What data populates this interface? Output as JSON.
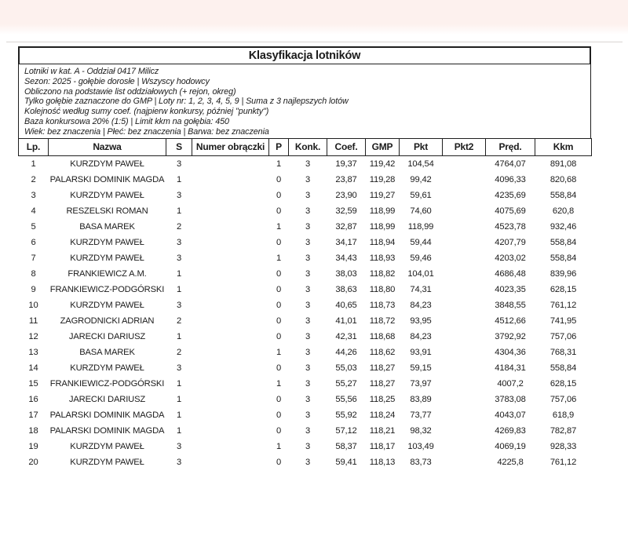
{
  "report": {
    "title": "Klasyfikacja lotników",
    "info_lines": [
      "Lotniki w kat. A - Oddział 0417 Milicz",
      "Sezon: 2025 - gołębie dorosłe  |  Wszyscy hodowcy",
      "Obliczono na podstawie list oddziałowych (+ rejon, okreg)",
      "Tylko gołębie zaznaczone do GMP  |  Loty nr: 1, 2, 3, 4, 5, 9  |  Suma z 3 najlepszych lotów",
      "Kolejność według sumy coef. (najpierw konkursy, później \"punkty\")",
      "Baza konkursowa 20% (1:5) | Limit kkm na gołębia: 450",
      "Wiek: bez znaczenia  |  Płeć: bez znaczenia  |  Barwa: bez znaczenia"
    ]
  },
  "table": {
    "columns": [
      "Lp.",
      "Nazwa",
      "S",
      "Numer obrączki",
      "P",
      "Konk.",
      "Coef.",
      "GMP",
      "Pkt",
      "Pkt2",
      "Pręd.",
      "Kkm"
    ],
    "column_keys": [
      "lp",
      "nazwa",
      "s",
      "numer-obraczki",
      "p",
      "konk",
      "coef",
      "gmp",
      "pkt",
      "pkt2",
      "pred",
      "kkm"
    ],
    "rows": [
      [
        "1",
        "KURZDYM PAWEŁ",
        "3",
        "",
        "1",
        "3",
        "19,37",
        "119,42",
        "104,54",
        "",
        "4764,07",
        "891,08"
      ],
      [
        "2",
        "PALARSKI DOMINIK MAGDA",
        "1",
        "",
        "0",
        "3",
        "23,87",
        "119,28",
        "99,42",
        "",
        "4096,33",
        "820,68"
      ],
      [
        "3",
        "KURZDYM PAWEŁ",
        "3",
        "",
        "0",
        "3",
        "23,90",
        "119,27",
        "59,61",
        "",
        "4235,69",
        "558,84"
      ],
      [
        "4",
        "RESZELSKI ROMAN",
        "1",
        "",
        "0",
        "3",
        "32,59",
        "118,99",
        "74,60",
        "",
        "4075,69",
        "620,8"
      ],
      [
        "5",
        "BASA MAREK",
        "2",
        "",
        "1",
        "3",
        "32,87",
        "118,99",
        "118,99",
        "",
        "4523,78",
        "932,46"
      ],
      [
        "6",
        "KURZDYM PAWEŁ",
        "3",
        "",
        "0",
        "3",
        "34,17",
        "118,94",
        "59,44",
        "",
        "4207,79",
        "558,84"
      ],
      [
        "7",
        "KURZDYM PAWEŁ",
        "3",
        "",
        "1",
        "3",
        "34,43",
        "118,93",
        "59,46",
        "",
        "4203,02",
        "558,84"
      ],
      [
        "8",
        "FRANKIEWICZ A.M.",
        "1",
        "",
        "0",
        "3",
        "38,03",
        "118,82",
        "104,01",
        "",
        "4686,48",
        "839,96"
      ],
      [
        "9",
        "FRANKIEWICZ-PODGÓRSKI",
        "1",
        "",
        "0",
        "3",
        "38,63",
        "118,80",
        "74,31",
        "",
        "4023,35",
        "628,15"
      ],
      [
        "10",
        "KURZDYM PAWEŁ",
        "3",
        "",
        "0",
        "3",
        "40,65",
        "118,73",
        "84,23",
        "",
        "3848,55",
        "761,12"
      ],
      [
        "11",
        "ZAGRODNICKI ADRIAN",
        "2",
        "",
        "0",
        "3",
        "41,01",
        "118,72",
        "93,95",
        "",
        "4512,66",
        "741,95"
      ],
      [
        "12",
        "JARECKI DARIUSZ",
        "1",
        "",
        "0",
        "3",
        "42,31",
        "118,68",
        "84,23",
        "",
        "3792,92",
        "757,06"
      ],
      [
        "13",
        "BASA MAREK",
        "2",
        "",
        "1",
        "3",
        "44,26",
        "118,62",
        "93,91",
        "",
        "4304,36",
        "768,31"
      ],
      [
        "14",
        "KURZDYM PAWEŁ",
        "3",
        "",
        "0",
        "3",
        "55,03",
        "118,27",
        "59,15",
        "",
        "4184,31",
        "558,84"
      ],
      [
        "15",
        "FRANKIEWICZ-PODGÓRSKI",
        "1",
        "",
        "1",
        "3",
        "55,27",
        "118,27",
        "73,97",
        "",
        "4007,2",
        "628,15"
      ],
      [
        "16",
        "JARECKI DARIUSZ",
        "1",
        "",
        "0",
        "3",
        "55,56",
        "118,25",
        "83,89",
        "",
        "3783,08",
        "757,06"
      ],
      [
        "17",
        "PALARSKI DOMINIK MAGDA",
        "1",
        "",
        "0",
        "3",
        "55,92",
        "118,24",
        "73,77",
        "",
        "4043,07",
        "618,9"
      ],
      [
        "18",
        "PALARSKI DOMINIK MAGDA",
        "1",
        "",
        "0",
        "3",
        "57,12",
        "118,21",
        "98,32",
        "",
        "4269,83",
        "782,87"
      ],
      [
        "19",
        "KURZDYM PAWEŁ",
        "3",
        "",
        "1",
        "3",
        "58,37",
        "118,17",
        "103,49",
        "",
        "4069,19",
        "928,33"
      ],
      [
        "20",
        "KURZDYM PAWEŁ",
        "3",
        "",
        "0",
        "3",
        "59,41",
        "118,13",
        "83,73",
        "",
        "4225,8",
        "761,12"
      ]
    ]
  },
  "colors": {
    "top_band": "#fdf1ee",
    "border": "#1f1f1f",
    "text": "#1b1b1b"
  }
}
